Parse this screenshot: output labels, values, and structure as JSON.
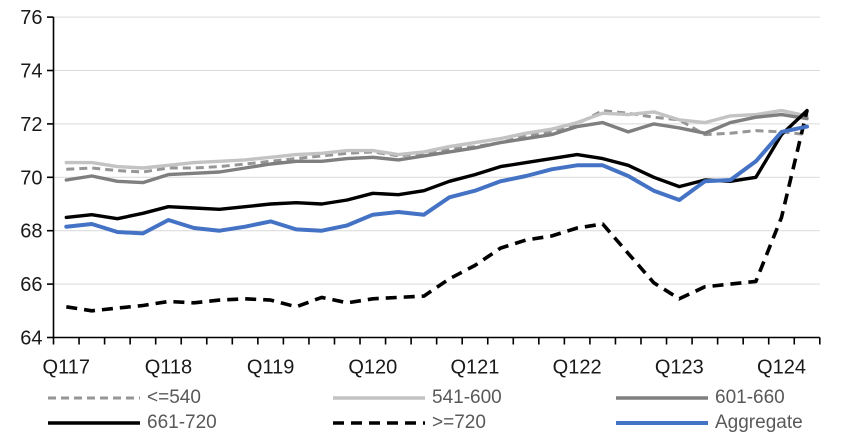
{
  "chart_data": {
    "type": "line",
    "title": "",
    "xlabel": "",
    "ylabel": "",
    "ylim": [
      64,
      76
    ],
    "y_ticks": [
      64,
      66,
      68,
      70,
      72,
      74,
      76
    ],
    "grid": "horizontal-only",
    "legend_position": "bottom",
    "x": [
      "Q117",
      "Q217",
      "Q317",
      "Q417",
      "Q118",
      "Q218",
      "Q318",
      "Q418",
      "Q119",
      "Q219",
      "Q319",
      "Q419",
      "Q120",
      "Q220",
      "Q320",
      "Q420",
      "Q121",
      "Q221",
      "Q321",
      "Q421",
      "Q122",
      "Q222",
      "Q322",
      "Q422",
      "Q123",
      "Q223",
      "Q323",
      "Q423",
      "Q124",
      "Q224"
    ],
    "x_axis_tick_labels": [
      "Q117",
      "Q118",
      "Q119",
      "Q120",
      "Q121",
      "Q122",
      "Q123",
      "Q124"
    ],
    "x_axis_label_indices": [
      0,
      4,
      8,
      12,
      16,
      20,
      24,
      28
    ],
    "series": [
      {
        "name": "<=540",
        "color": "#969696",
        "dash": "dashed",
        "values": [
          70.3,
          70.35,
          70.25,
          70.2,
          70.35,
          70.35,
          70.4,
          70.5,
          70.6,
          70.7,
          70.8,
          70.9,
          70.95,
          70.8,
          70.9,
          71.05,
          71.15,
          71.3,
          71.55,
          71.7,
          72.0,
          72.5,
          72.4,
          72.25,
          72.15,
          71.6,
          71.65,
          71.75,
          71.7,
          71.6
        ]
      },
      {
        "name": "541-600",
        "color": "#c3c3c3",
        "dash": "solid",
        "values": [
          70.55,
          70.55,
          70.4,
          70.35,
          70.45,
          70.55,
          70.6,
          70.65,
          70.75,
          70.85,
          70.9,
          71.0,
          71.0,
          70.85,
          70.95,
          71.15,
          71.3,
          71.45,
          71.65,
          71.8,
          72.05,
          72.4,
          72.35,
          72.45,
          72.15,
          72.05,
          72.3,
          72.35,
          72.5,
          72.3
        ]
      },
      {
        "name": "601-660",
        "color": "#7f7f7f",
        "dash": "solid",
        "values": [
          69.9,
          70.05,
          69.85,
          69.8,
          70.1,
          70.15,
          70.2,
          70.35,
          70.5,
          70.6,
          70.6,
          70.7,
          70.75,
          70.65,
          70.8,
          70.95,
          71.1,
          71.3,
          71.45,
          71.6,
          71.9,
          72.05,
          71.7,
          72.0,
          71.85,
          71.65,
          72.05,
          72.25,
          72.35,
          72.2
        ]
      },
      {
        "name": "661-720",
        "color": "#000000",
        "dash": "solid",
        "values": [
          68.5,
          68.6,
          68.45,
          68.65,
          68.9,
          68.85,
          68.8,
          68.9,
          69.0,
          69.05,
          69.0,
          69.15,
          69.4,
          69.35,
          69.5,
          69.85,
          70.1,
          70.4,
          70.55,
          70.7,
          70.85,
          70.7,
          70.45,
          70.0,
          69.65,
          69.9,
          69.85,
          70.0,
          71.6,
          72.5
        ]
      },
      {
        "name": ">=720",
        "color": "#000000",
        "dash": "dashed",
        "values": [
          65.15,
          65.0,
          65.1,
          65.2,
          65.35,
          65.3,
          65.4,
          65.45,
          65.4,
          65.15,
          65.5,
          65.3,
          65.45,
          65.5,
          65.55,
          66.2,
          66.7,
          67.35,
          67.65,
          67.8,
          68.1,
          68.25,
          67.15,
          66.05,
          65.45,
          65.9,
          66.0,
          66.1,
          68.5,
          72.5
        ]
      },
      {
        "name": "Aggregate",
        "color": "#4472c4",
        "dash": "solid",
        "values": [
          68.15,
          68.25,
          67.95,
          67.9,
          68.4,
          68.1,
          68.0,
          68.15,
          68.35,
          68.05,
          68.0,
          68.2,
          68.6,
          68.7,
          68.6,
          69.25,
          69.5,
          69.85,
          70.05,
          70.3,
          70.45,
          70.45,
          70.05,
          69.5,
          69.15,
          69.85,
          69.9,
          70.6,
          71.7,
          71.9
        ]
      }
    ]
  },
  "legend": {
    "items": [
      "<=540",
      "541-600",
      "601-660",
      "661-720",
      ">=720",
      "Aggregate"
    ]
  }
}
